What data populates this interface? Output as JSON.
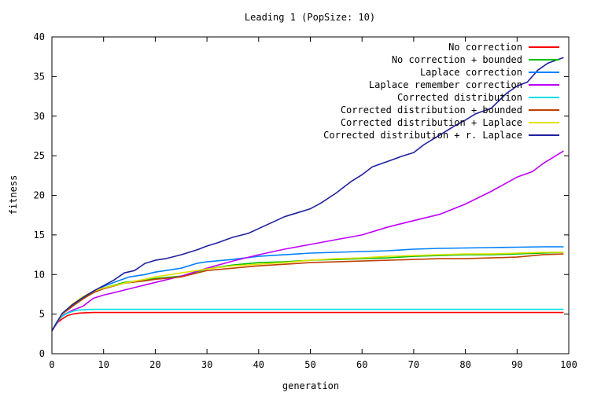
{
  "chart_data": {
    "type": "line",
    "title": "Leading 1 (PopSize: 10)",
    "xlabel": "generation",
    "ylabel": "fitness",
    "xlim": [
      0,
      100
    ],
    "ylim": [
      0,
      40
    ],
    "xticks": [
      "0",
      "10",
      "20",
      "30",
      "40",
      "50",
      "60",
      "70",
      "80",
      "90",
      "100"
    ],
    "yticks": [
      "0",
      "5",
      "10",
      "15",
      "20",
      "25",
      "30",
      "35",
      "40"
    ],
    "legend_position": "top-right",
    "series": [
      {
        "name": "No correction",
        "color": "#ff0000",
        "x": [
          0,
          1,
          2,
          3,
          4,
          5,
          6,
          8,
          10,
          20,
          40,
          60,
          80,
          99
        ],
        "y": [
          2.9,
          3.9,
          4.4,
          4.8,
          5.0,
          5.1,
          5.15,
          5.2,
          5.2,
          5.2,
          5.2,
          5.2,
          5.2,
          5.2
        ]
      },
      {
        "name": "No correction + bounded",
        "color": "#00c000",
        "x": [
          0,
          2,
          4,
          6,
          8,
          10,
          14,
          18,
          20,
          25,
          30,
          35,
          40,
          45,
          50,
          55,
          60,
          65,
          70,
          75,
          80,
          85,
          90,
          95,
          99
        ],
        "y": [
          2.9,
          5.0,
          6.0,
          7.0,
          7.8,
          8.3,
          9.0,
          9.3,
          9.5,
          9.8,
          10.7,
          11.2,
          11.5,
          11.6,
          11.8,
          11.9,
          12.0,
          12.1,
          12.3,
          12.4,
          12.5,
          12.5,
          12.6,
          12.7,
          12.8
        ]
      },
      {
        "name": "Laplace correction",
        "color": "#0080ff",
        "x": [
          0,
          2,
          4,
          6,
          8,
          10,
          12,
          15,
          18,
          20,
          25,
          28,
          30,
          35,
          40,
          45,
          50,
          55,
          60,
          65,
          70,
          75,
          80,
          85,
          90,
          95,
          99
        ],
        "y": [
          2.9,
          5.0,
          6.1,
          7.1,
          7.9,
          8.5,
          9.0,
          9.7,
          10.0,
          10.3,
          10.8,
          11.4,
          11.6,
          11.9,
          12.3,
          12.5,
          12.7,
          12.8,
          12.9,
          13.0,
          13.2,
          13.3,
          13.35,
          13.4,
          13.45,
          13.5,
          13.5
        ]
      },
      {
        "name": "Laplace remember correction",
        "color": "#c000ff",
        "x": [
          0,
          2,
          4,
          6,
          8,
          10,
          12,
          15,
          20,
          25,
          30,
          35,
          40,
          45,
          50,
          55,
          60,
          65,
          70,
          75,
          80,
          85,
          90,
          93,
          95,
          99
        ],
        "y": [
          2.9,
          4.8,
          5.5,
          6.0,
          7.0,
          7.4,
          7.7,
          8.2,
          9.0,
          9.8,
          10.8,
          11.7,
          12.5,
          13.2,
          13.8,
          14.4,
          15.0,
          16.0,
          16.8,
          17.6,
          18.9,
          20.5,
          22.3,
          23.0,
          24.0,
          25.6
        ]
      },
      {
        "name": "Corrected distribution",
        "color": "#00e0e0",
        "x": [
          0,
          1,
          2,
          3,
          4,
          5,
          6,
          8,
          10,
          20,
          40,
          60,
          80,
          99
        ],
        "y": [
          2.9,
          4.1,
          4.7,
          5.1,
          5.35,
          5.5,
          5.55,
          5.6,
          5.6,
          5.6,
          5.6,
          5.6,
          5.6,
          5.6
        ]
      },
      {
        "name": "Corrected distribution + bounded",
        "color": "#c04000",
        "x": [
          0,
          2,
          4,
          6,
          8,
          10,
          14,
          18,
          20,
          25,
          30,
          35,
          40,
          45,
          50,
          55,
          60,
          65,
          70,
          75,
          80,
          85,
          90,
          95,
          99
        ],
        "y": [
          2.9,
          5.0,
          6.0,
          6.9,
          7.7,
          8.2,
          8.9,
          9.2,
          9.4,
          9.7,
          10.5,
          10.8,
          11.1,
          11.3,
          11.5,
          11.6,
          11.7,
          11.8,
          11.9,
          12.0,
          12.0,
          12.1,
          12.2,
          12.5,
          12.6
        ]
      },
      {
        "name": "Corrected distribution + Laplace",
        "color": "#e0e000",
        "x": [
          0,
          2,
          4,
          6,
          8,
          10,
          14,
          18,
          20,
          25,
          30,
          35,
          40,
          45,
          50,
          55,
          60,
          65,
          70,
          75,
          80,
          85,
          90,
          95,
          99
        ],
        "y": [
          2.9,
          5.0,
          6.3,
          7.2,
          7.9,
          8.3,
          8.9,
          9.4,
          9.7,
          10.2,
          10.7,
          11.1,
          11.3,
          11.5,
          11.8,
          12.0,
          12.1,
          12.3,
          12.4,
          12.5,
          12.6,
          12.6,
          12.7,
          12.8,
          12.8
        ]
      },
      {
        "name": "Corrected distribution + r. Laplace",
        "color": "#2020a0",
        "x": [
          0,
          2,
          4,
          6,
          8,
          10,
          12,
          14,
          16,
          18,
          20,
          22,
          25,
          28,
          30,
          32,
          35,
          38,
          40,
          42,
          45,
          48,
          50,
          52,
          55,
          58,
          60,
          62,
          65,
          68,
          70,
          72,
          75,
          78,
          80,
          82,
          85,
          88,
          90,
          92,
          94,
          96,
          99
        ],
        "y": [
          2.9,
          5.1,
          6.2,
          7.1,
          7.9,
          8.6,
          9.3,
          10.2,
          10.5,
          11.4,
          11.8,
          12.0,
          12.5,
          13.1,
          13.6,
          14.0,
          14.7,
          15.2,
          15.8,
          16.4,
          17.3,
          17.9,
          18.3,
          19.0,
          20.3,
          21.8,
          22.6,
          23.6,
          24.3,
          25.0,
          25.4,
          26.4,
          27.6,
          28.8,
          29.5,
          30.3,
          31.0,
          32.9,
          33.8,
          34.3,
          35.8,
          36.7,
          37.4
        ]
      }
    ]
  }
}
